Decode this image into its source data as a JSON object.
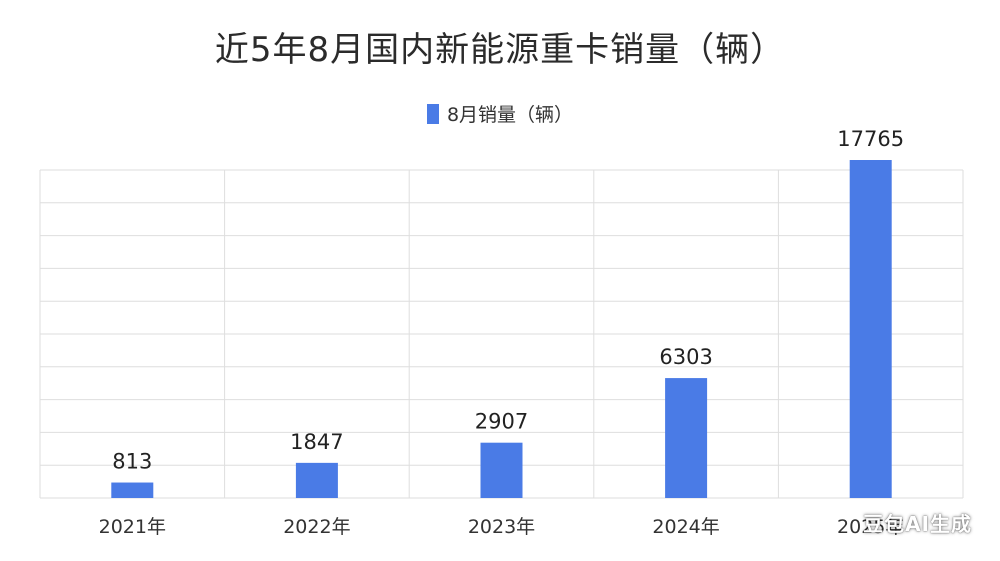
{
  "chart_data": {
    "type": "bar",
    "title": "近5年8月国内新能源重卡销量（辆）",
    "categories": [
      "2021年",
      "2022年",
      "2023年",
      "2024年",
      "2025年"
    ],
    "series": [
      {
        "name": "8月销量（辆）",
        "values": [
          813,
          1847,
          2907,
          6303,
          17765
        ],
        "color": "#4a7be6"
      }
    ],
    "data_labels": [
      "813",
      "1847",
      "2907",
      "6303",
      "17765"
    ],
    "xlabel": "",
    "ylabel": "",
    "y_axis_labels_visible": false,
    "grid": true,
    "legend_position": "top-center",
    "gridline_color": "#dedede"
  },
  "watermark": {
    "text": "豆包AI生成"
  }
}
